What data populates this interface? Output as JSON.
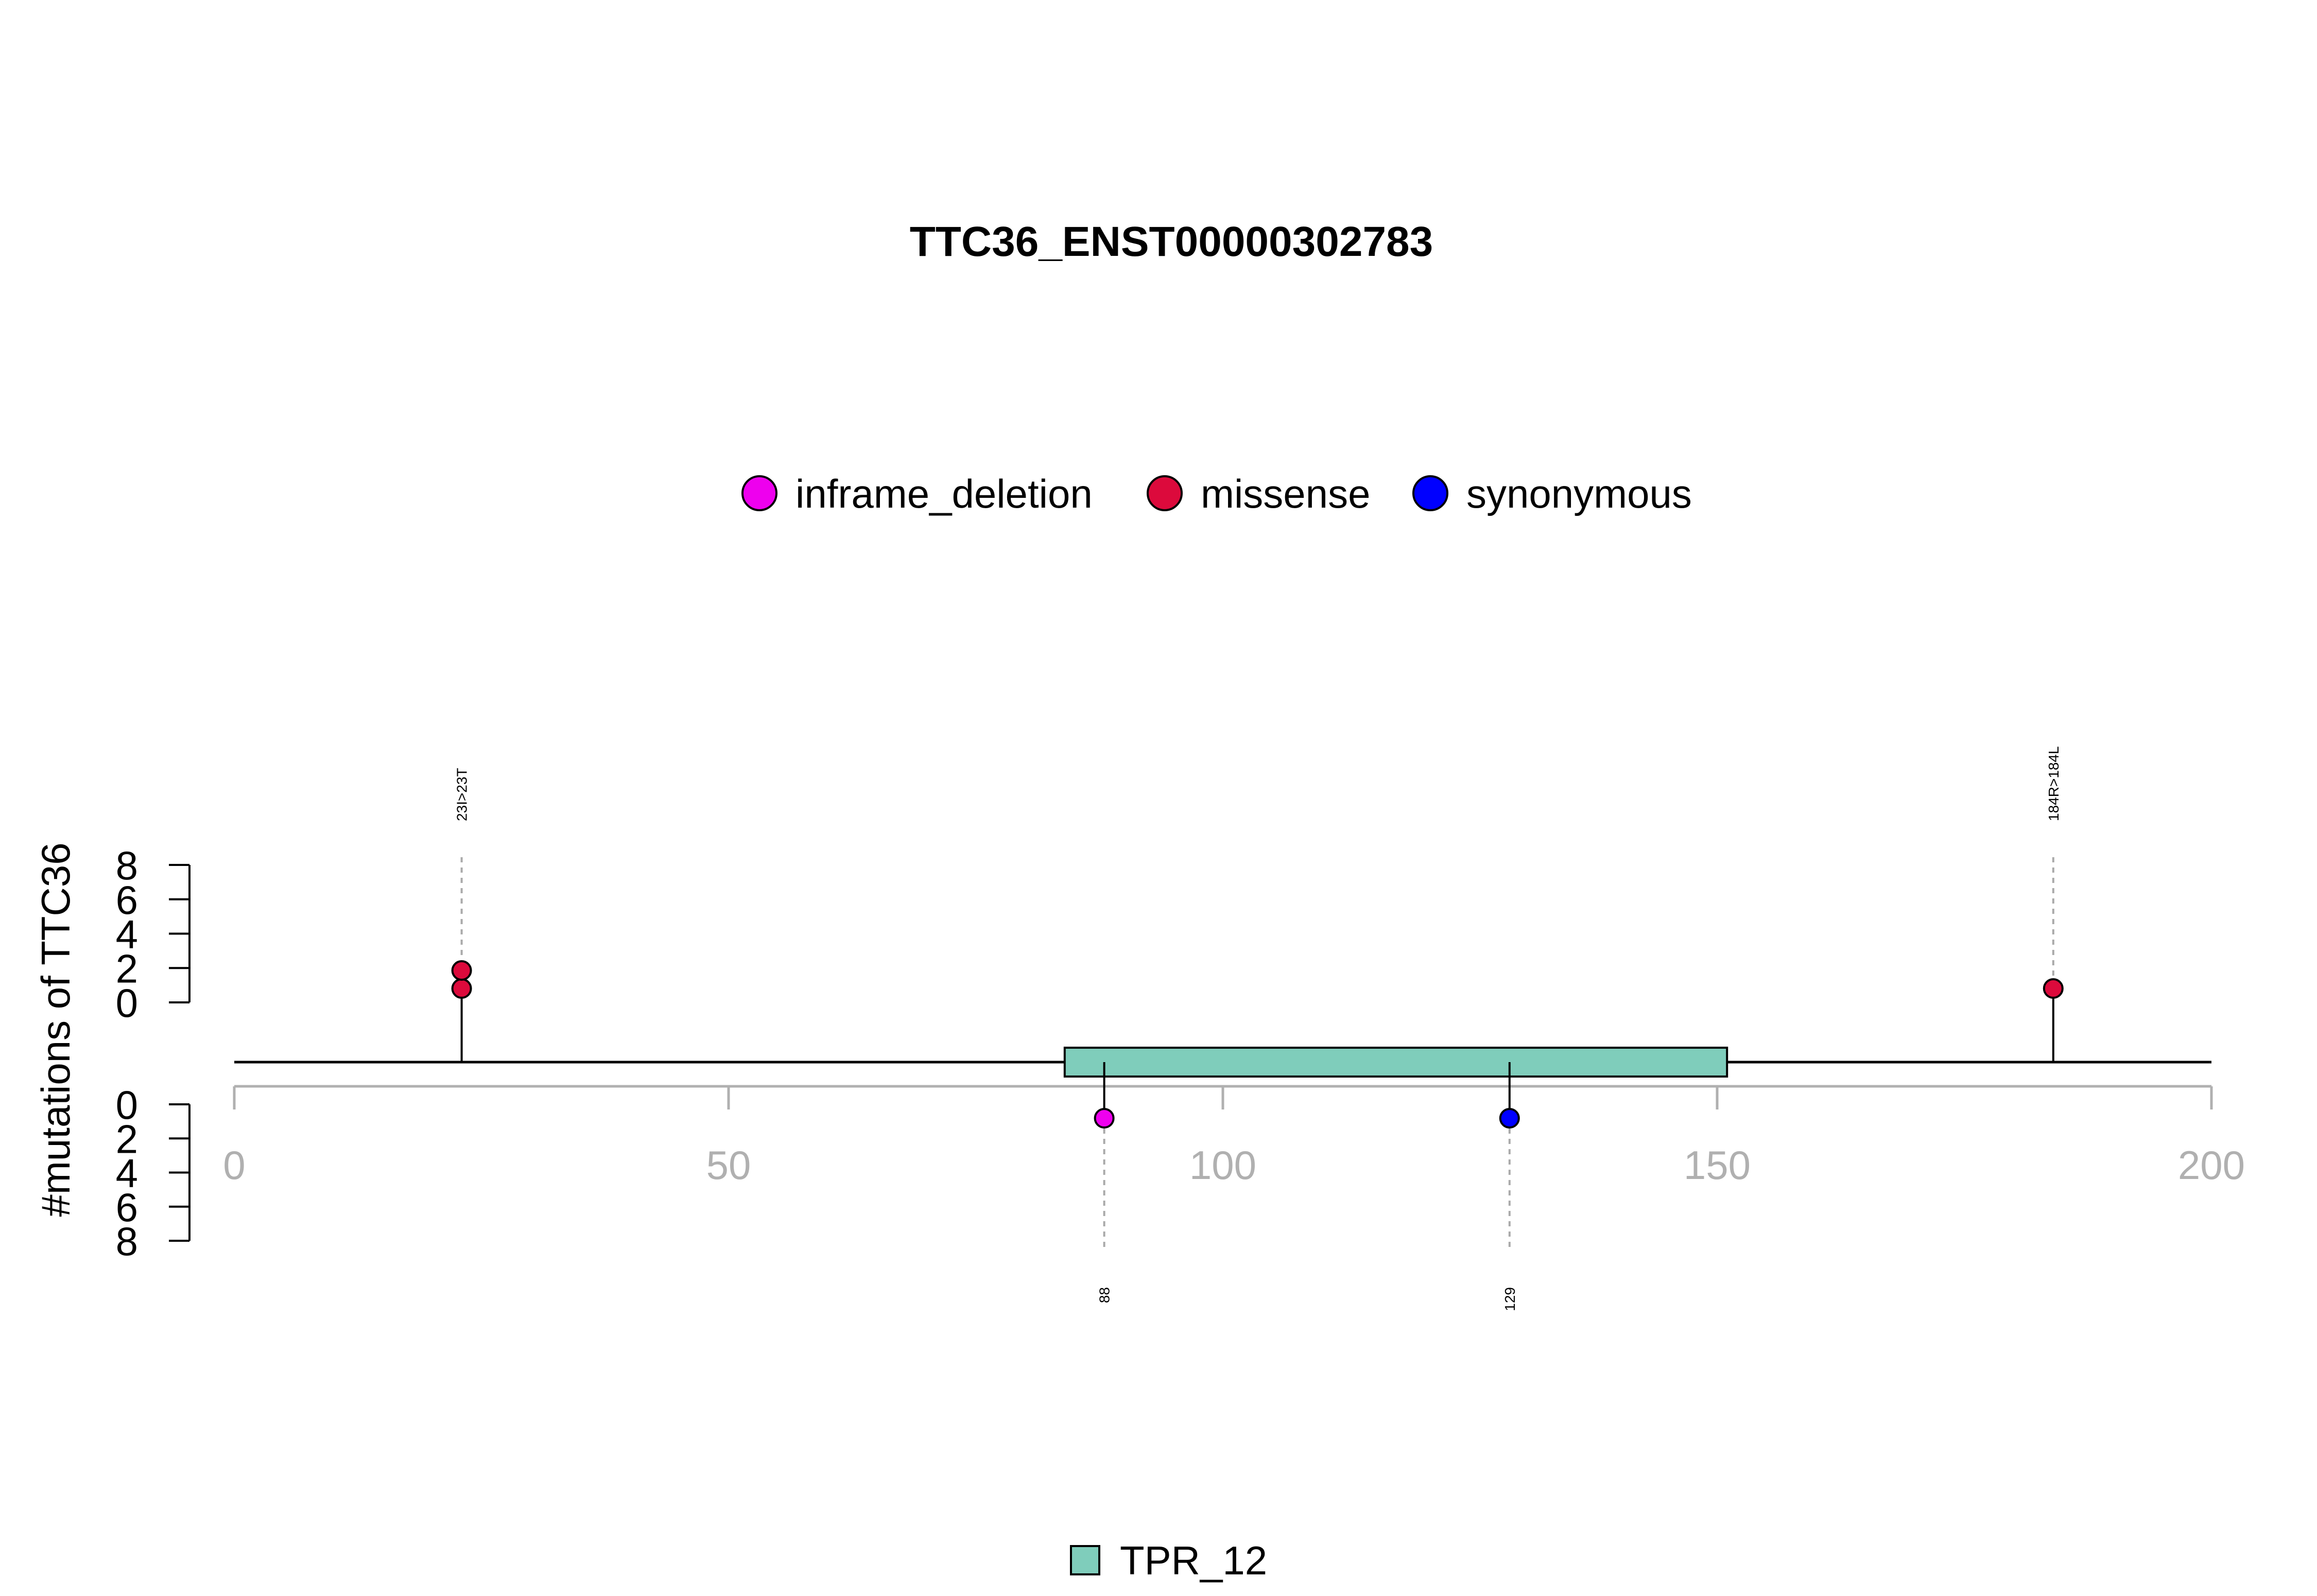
{
  "chart_data": {
    "type": "lollipop",
    "title": "TTC36_ENST00000302783",
    "ylabel": "#mutations of TTC36",
    "xlim": [
      0,
      200
    ],
    "xticks": [
      "0",
      "50",
      "100",
      "150",
      "200"
    ],
    "protein_length": 200,
    "upper_yticks": [
      "0",
      "2",
      "4",
      "6",
      "8"
    ],
    "lower_yticks": [
      "0",
      "2",
      "4",
      "6",
      "8"
    ],
    "ylim": [
      0,
      8
    ],
    "legend": [
      {
        "name": "inframe_deletion",
        "color": "#ee00ee"
      },
      {
        "name": "missense",
        "color": "#dc0a3c"
      },
      {
        "name": "synonymous",
        "color": "#0000ff"
      }
    ],
    "mutations": [
      {
        "position": 23,
        "label": "23I>23T",
        "type": "missense",
        "count": 2,
        "side": "upper"
      },
      {
        "position": 184,
        "label": "184R>184L",
        "type": "missense",
        "count": 1,
        "side": "upper"
      },
      {
        "position": 88,
        "label": "88",
        "type": "inframe_deletion",
        "count": 1,
        "side": "lower"
      },
      {
        "position": 129,
        "label": "129",
        "type": "synonymous",
        "count": 1,
        "side": "lower"
      }
    ],
    "domains": [
      {
        "name": "TPR_12",
        "start": 84,
        "end": 151,
        "color": "#7fcdbb"
      }
    ],
    "domain_legend": [
      {
        "name": "TPR_12",
        "color": "#7fcdbb"
      }
    ]
  }
}
